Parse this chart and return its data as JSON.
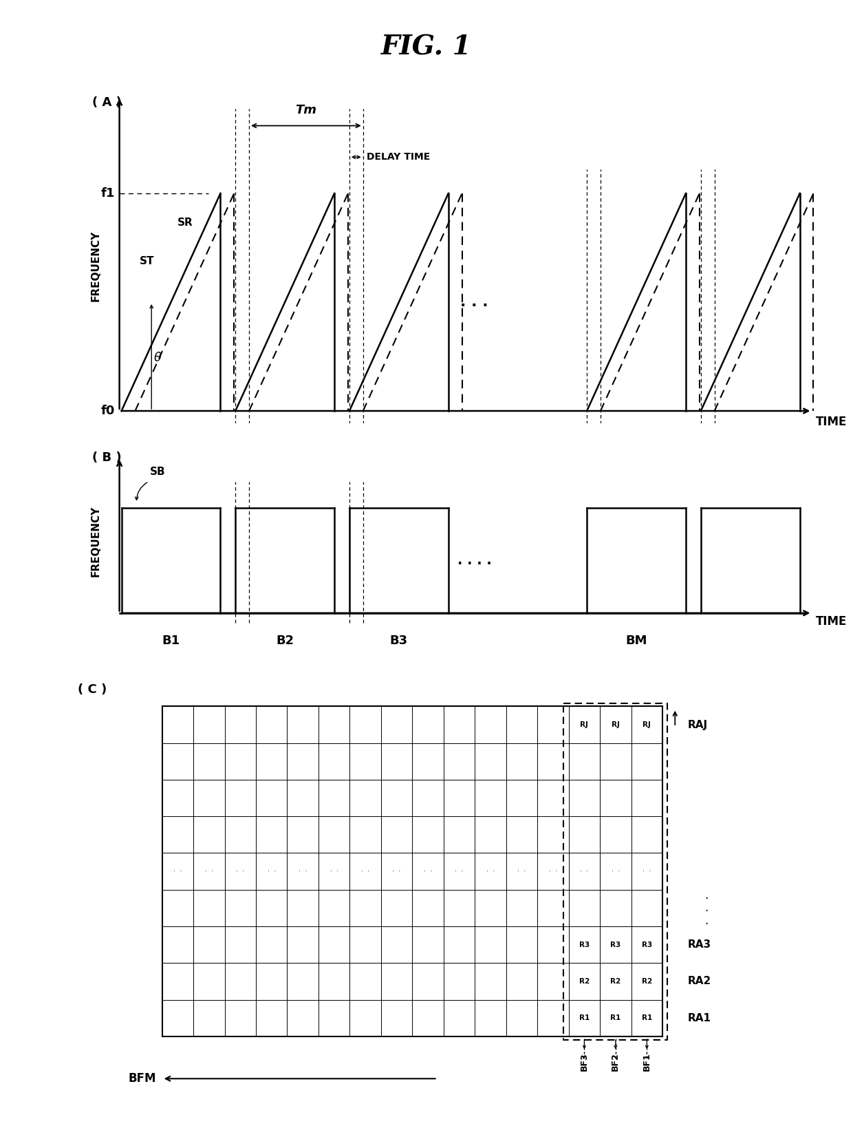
{
  "title": "FIG. 1",
  "bg_color": "#ffffff",
  "fig_width": 12.4,
  "fig_height": 16.39,
  "panel_A_label": "( A )",
  "panel_B_label": "( B )",
  "panel_C_label": "( C )",
  "freq_label": "FREQUENCY",
  "time_label": "TIME",
  "f0_label": "f0",
  "f1_label": "f1",
  "ST_label": "ST",
  "SR_label": "SR",
  "SB_label": "SB",
  "Tm_label": "Tm",
  "delay_label": "DELAY TIME",
  "theta_label": "θ",
  "B1_label": "B1",
  "B2_label": "B2",
  "B3_label": "B3",
  "BM_label": "BM",
  "RAJ_label": "RAJ",
  "RA1_label": "RA1",
  "RA2_label": "RA2",
  "RA3_label": "RA3",
  "RJ_label": "RJ",
  "R1_label": "R1",
  "R2_label": "R2",
  "R3_label": "R3",
  "BFM_label": "BFM",
  "BF1_label": "BF1",
  "BF2_label": "BF2",
  "BF3_label": "BF3"
}
